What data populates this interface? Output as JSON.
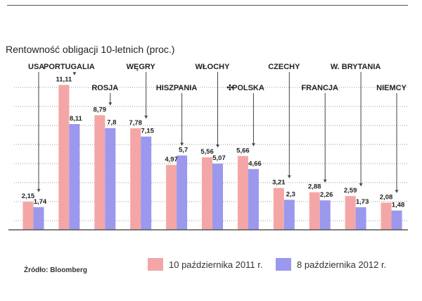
{
  "chart_data": {
    "type": "bar",
    "title": "Rentowność obligacji 10-letnich (proc.)",
    "categories": [
      "USA",
      "PORTUGALIA",
      "ROSJA",
      "WĘGRY",
      "HISZPANIA",
      "WŁOCHY",
      "POLSKA",
      "CZECHY",
      "FRANCJA",
      "W. BRYTANIA",
      "NIEMCY"
    ],
    "series": [
      {
        "name": "10 października 2011 r.",
        "values": [
          2.15,
          11.11,
          8.79,
          7.78,
          4.97,
          5.56,
          5.66,
          3.21,
          2.88,
          2.59,
          2.08
        ],
        "labels": [
          "2,15",
          "11,11",
          "8,79",
          "7,78",
          "4,97",
          "5,56",
          "5,66",
          "3,21",
          "2,88",
          "2,59",
          "2,08"
        ]
      },
      {
        "name": "8 października 2012 r.",
        "values": [
          1.74,
          8.11,
          7.8,
          7.15,
          5.7,
          5.07,
          4.66,
          2.3,
          2.26,
          1.73,
          1.48
        ],
        "labels": [
          "1,74",
          "8,11",
          "7,8",
          "7,15",
          "5,7",
          "5,07",
          "4,66",
          "2,3",
          "2,26",
          "1,73",
          "1,48"
        ]
      }
    ],
    "highlight_category": "POLSKA",
    "ylim": [
      0,
      12
    ],
    "grid": true,
    "legend": "bottom",
    "source": "Źródło: Bloomberg",
    "colors": {
      "series1": "#f4a6a6",
      "series2": "#9b98ee",
      "highlight": "#e2203a",
      "grid": "#9a9a9a",
      "axis": "#555555"
    }
  }
}
